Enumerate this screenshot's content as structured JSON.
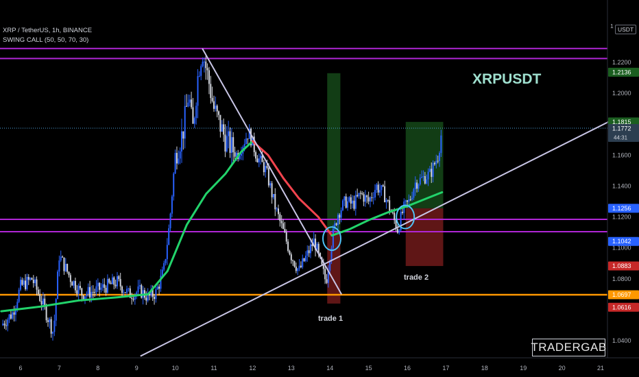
{
  "header": {
    "symbol_line": "XRP / TetherUS, 1h, BINANCE",
    "indicator_line": "SWING CALL (50, 50, 70, 30)"
  },
  "watermark": "XRPUSDT",
  "brand_box": "TRADERGAB",
  "annotations": {
    "trade1": "trade 1",
    "trade2": "trade 2"
  },
  "colors": {
    "background": "#000000",
    "bull_candle": "#2962ff",
    "bear_candle": "#d1d4dc",
    "resistance": "#b026d6",
    "support": "#ff9800",
    "trendline": "#c9c6e6",
    "ma_up": "#22d36b",
    "ma_down": "#f2444e",
    "ma_neutral": "#ffe84a",
    "target_zone": "#1b5e20",
    "stop_zone": "#7f1d1d",
    "watermark": "#9fe0cf"
  },
  "right_axis": {
    "currency_label": "USDT",
    "countdown": "44:31",
    "tick_labels": [
      "1.2200",
      "1.2000",
      "1.1600",
      "1.1400",
      "1.1200",
      "1.1000",
      "1.0800",
      "1.0400"
    ],
    "tick_values": [
      1.22,
      1.2,
      1.16,
      1.14,
      1.12,
      1.1,
      1.08,
      1.04
    ],
    "price_tags": [
      {
        "label": "1.2136",
        "value": 1.2136,
        "color": "#1b5e20"
      },
      {
        "label": "1.1815",
        "value": 1.1815,
        "color": "#1b5e20"
      },
      {
        "label": "1.1772",
        "value": 1.1772,
        "color": "#2c3e50"
      },
      {
        "label": "1.1256",
        "value": 1.1256,
        "color": "#2962ff"
      },
      {
        "label": "1.1042",
        "value": 1.1042,
        "color": "#2962ff"
      },
      {
        "label": "1.0883",
        "value": 1.0883,
        "color": "#c62828"
      },
      {
        "label": "1.0697",
        "value": 1.0697,
        "color": "#ff9800"
      },
      {
        "label": "1.0616",
        "value": 1.0616,
        "color": "#c62828"
      }
    ]
  },
  "chart_data": {
    "type": "candlestick",
    "x_tick_labels": [
      "6",
      "7",
      "8",
      "9",
      "10",
      "11",
      "12",
      "13",
      "14",
      "15",
      "16",
      "17",
      "18",
      "19",
      "20",
      "21"
    ],
    "x_range": [
      5.5,
      21.6
    ],
    "y_range": [
      1.025,
      1.25
    ],
    "horizontal_lines": [
      {
        "value": 1.229,
        "kind": "resistance"
      },
      {
        "value": 1.2225,
        "kind": "resistance"
      },
      {
        "value": 1.1185,
        "kind": "resistance"
      },
      {
        "value": 1.1105,
        "kind": "resistance"
      },
      {
        "value": 1.0697,
        "kind": "support"
      }
    ],
    "current_price": 1.1815,
    "price_path": [
      [
        5.5,
        1.05
      ],
      [
        5.8,
        1.058
      ],
      [
        6.0,
        1.075
      ],
      [
        6.3,
        1.08
      ],
      [
        6.6,
        1.062
      ],
      [
        6.85,
        1.045
      ],
      [
        7.0,
        1.095
      ],
      [
        7.3,
        1.08
      ],
      [
        7.6,
        1.07
      ],
      [
        7.9,
        1.072
      ],
      [
        8.2,
        1.075
      ],
      [
        8.5,
        1.078
      ],
      [
        8.8,
        1.07
      ],
      [
        9.1,
        1.072
      ],
      [
        9.3,
        1.068
      ],
      [
        9.5,
        1.071
      ],
      [
        9.7,
        1.085
      ],
      [
        9.85,
        1.115
      ],
      [
        10.0,
        1.16
      ],
      [
        10.2,
        1.175
      ],
      [
        10.35,
        1.2
      ],
      [
        10.45,
        1.175
      ],
      [
        10.6,
        1.215
      ],
      [
        10.7,
        1.228
      ],
      [
        10.85,
        1.21
      ],
      [
        11.0,
        1.19
      ],
      [
        11.3,
        1.17
      ],
      [
        11.6,
        1.16
      ],
      [
        11.9,
        1.175
      ],
      [
        12.1,
        1.16
      ],
      [
        12.35,
        1.15
      ],
      [
        12.6,
        1.125
      ],
      [
        12.8,
        1.11
      ],
      [
        13.0,
        1.095
      ],
      [
        13.2,
        1.085
      ],
      [
        13.4,
        1.095
      ],
      [
        13.6,
        1.105
      ],
      [
        13.75,
        1.09
      ],
      [
        13.9,
        1.078
      ],
      [
        14.05,
        1.105
      ],
      [
        14.2,
        1.122
      ],
      [
        14.4,
        1.13
      ],
      [
        14.6,
        1.128
      ],
      [
        14.8,
        1.135
      ],
      [
        15.0,
        1.13
      ],
      [
        15.2,
        1.14
      ],
      [
        15.4,
        1.135
      ],
      [
        15.6,
        1.122
      ],
      [
        15.75,
        1.112
      ],
      [
        15.9,
        1.125
      ],
      [
        16.05,
        1.13
      ],
      [
        16.2,
        1.142
      ],
      [
        16.4,
        1.145
      ],
      [
        16.6,
        1.148
      ],
      [
        16.8,
        1.16
      ],
      [
        16.9,
        1.1772
      ]
    ],
    "ma_segments": [
      {
        "trend": "up",
        "points": [
          [
            5.5,
            1.059
          ],
          [
            6.5,
            1.062
          ],
          [
            7.5,
            1.066
          ],
          [
            8.5,
            1.068
          ],
          [
            9.3,
            1.07
          ]
        ]
      },
      {
        "trend": "up",
        "points": [
          [
            9.3,
            1.07
          ],
          [
            9.8,
            1.085
          ],
          [
            10.3,
            1.115
          ],
          [
            10.8,
            1.135
          ],
          [
            11.3,
            1.148
          ],
          [
            11.7,
            1.162
          ],
          [
            12.0,
            1.169
          ]
        ]
      },
      {
        "trend": "down",
        "points": [
          [
            12.0,
            1.169
          ],
          [
            12.4,
            1.16
          ],
          [
            12.8,
            1.145
          ],
          [
            13.2,
            1.132
          ],
          [
            13.7,
            1.12
          ],
          [
            14.05,
            1.108
          ]
        ]
      },
      {
        "trend": "up",
        "points": [
          [
            14.05,
            1.108
          ],
          [
            14.5,
            1.112
          ],
          [
            15.0,
            1.118
          ],
          [
            15.5,
            1.123
          ],
          [
            16.0,
            1.127
          ],
          [
            16.5,
            1.132
          ],
          [
            16.9,
            1.136
          ]
        ]
      }
    ],
    "trendlines": [
      {
        "from": [
          10.7,
          1.229
        ],
        "to": [
          14.3,
          1.07
        ]
      },
      {
        "from": [
          9.1,
          1.03
        ],
        "to": [
          21.4,
          1.184
        ]
      }
    ],
    "trade_zones": [
      {
        "name": "trade 1",
        "x0": 13.93,
        "x1": 14.27,
        "entry": 1.1105,
        "target": 1.213,
        "stop": 1.064
      },
      {
        "name": "trade 2",
        "x0": 15.96,
        "x1": 16.93,
        "entry": 1.1256,
        "target": 1.1815,
        "stop": 1.0883
      }
    ],
    "entry_markers": [
      {
        "x": 14.05,
        "y": 1.106
      },
      {
        "x": 15.95,
        "y": 1.12
      }
    ]
  }
}
